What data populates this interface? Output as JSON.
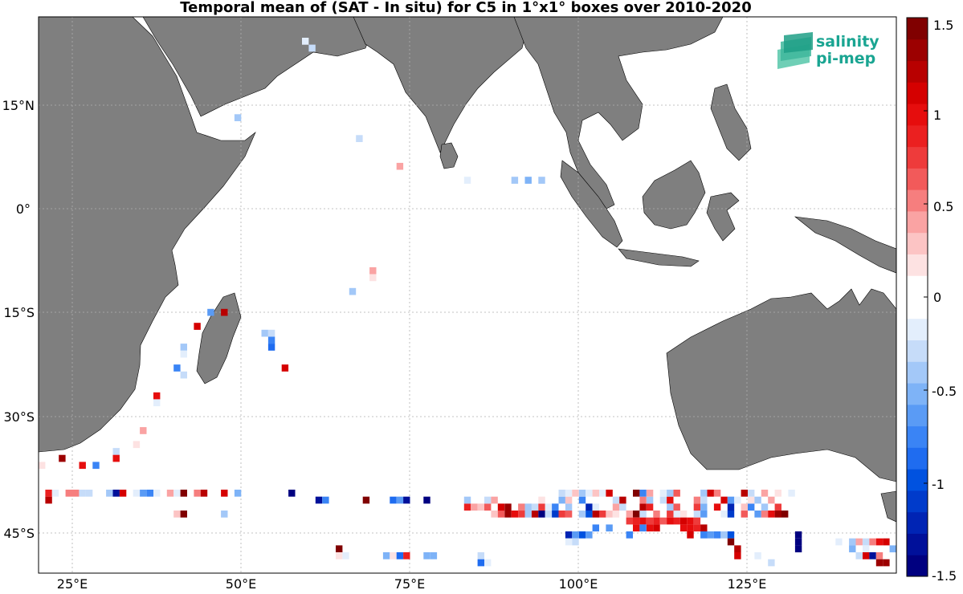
{
  "title": "Temporal mean of (SAT - In situ) for C5 in 1°x1° boxes over 2010-2020",
  "logo": {
    "line1": "salinity",
    "line2": "pi-mep",
    "icon": "wave-layers-icon"
  },
  "map": {
    "lon_range": [
      20,
      147
    ],
    "lat_range": [
      -51,
      29
    ],
    "land_color": "#7f7f7f",
    "ocean_color": "#ffffff",
    "grid": true,
    "lon_ticks": [
      {
        "lon": 25,
        "label": "25°E"
      },
      {
        "lon": 50,
        "label": "50°E"
      },
      {
        "lon": 75,
        "label": "75°E"
      },
      {
        "lon": 100,
        "label": "100°E"
      },
      {
        "lon": 125,
        "label": "125°E"
      }
    ],
    "lat_ticks": [
      {
        "lat": 15,
        "label": "15°N"
      },
      {
        "lat": 0,
        "label": "0°"
      },
      {
        "lat": -15,
        "label": "15°S"
      },
      {
        "lat": -30,
        "label": "30°S"
      },
      {
        "lat": -45,
        "label": "45°S"
      }
    ]
  },
  "colorbar": {
    "min": -1.5,
    "max": 1.5,
    "colors": [
      "#000080",
      "#00109a",
      "#0024b4",
      "#003bcb",
      "#0052e0",
      "#1f6cf0",
      "#3a84f5",
      "#5a9bf5",
      "#7eb3f7",
      "#a3c8f8",
      "#c6dcf9",
      "#e3eefc",
      "#ffffff",
      "#ffffff",
      "#fde2e2",
      "#fcc4c4",
      "#faa3a3",
      "#f67e7e",
      "#f25a5a",
      "#ee3b3b",
      "#eb2020",
      "#e60d0d",
      "#d50000",
      "#b80000",
      "#9c0000",
      "#800000"
    ],
    "ticks": [
      {
        "v": 1.5,
        "label": "1.5"
      },
      {
        "v": 1,
        "label": "1"
      },
      {
        "v": 0.5,
        "label": "0.5"
      },
      {
        "v": 0,
        "label": "0"
      },
      {
        "v": -0.5,
        "label": "-0.5"
      },
      {
        "v": -1,
        "label": "-1"
      },
      {
        "v": -1.5,
        "label": "-1.5"
      }
    ]
  },
  "chart_data": {
    "type": "heatmap",
    "title": "Temporal mean of (SAT - In situ) for C5 in 1°x1° boxes over 2010-2020",
    "cell_size_deg": 1,
    "points": [
      [
        59.5,
        25.5,
        -0.2
      ],
      [
        60.5,
        24.5,
        -0.3
      ],
      [
        49.5,
        14.5,
        -0.4
      ],
      [
        67.5,
        11.5,
        -0.3
      ],
      [
        73.5,
        7.5,
        0.4
      ],
      [
        73.5,
        6.5,
        -0.1
      ],
      [
        83.5,
        5.5,
        -0.2
      ],
      [
        90.5,
        5.5,
        -0.4
      ],
      [
        92.5,
        5.5,
        -0.5
      ],
      [
        94.5,
        5.5,
        -0.4
      ],
      [
        69.5,
        -7.5,
        0.4
      ],
      [
        69.5,
        -8.5,
        0.2
      ],
      [
        66.5,
        -10.5,
        -0.4
      ],
      [
        45.5,
        -13.5,
        -0.6
      ],
      [
        47.5,
        -13.5,
        1.2
      ],
      [
        43.5,
        -15.5,
        1.1
      ],
      [
        53.5,
        -16.5,
        -0.4
      ],
      [
        54.5,
        -16.5,
        -0.3
      ],
      [
        54.5,
        -17.5,
        -0.7
      ],
      [
        54.5,
        -18.5,
        -0.9
      ],
      [
        41.5,
        -18.5,
        -0.4
      ],
      [
        41.5,
        -19.5,
        -0.2
      ],
      [
        40.5,
        -21.5,
        -0.8
      ],
      [
        41.5,
        -22.5,
        -0.3
      ],
      [
        56.5,
        -21.5,
        1.1
      ],
      [
        37.5,
        -25.5,
        1.0
      ],
      [
        37.5,
        -26.5,
        -0.2
      ],
      [
        35.5,
        -30.5,
        0.4
      ],
      [
        36.5,
        -30.5,
        -0.1
      ],
      [
        34.5,
        -32.5,
        0.2
      ],
      [
        31.5,
        -33.5,
        -0.3
      ],
      [
        31.5,
        -34.5,
        1.0
      ],
      [
        23.5,
        -34.5,
        1.3
      ],
      [
        20.5,
        -35.5,
        0.2
      ],
      [
        26.5,
        -35.5,
        1.0
      ],
      [
        28.5,
        -35.5,
        -0.7
      ],
      [
        21.5,
        -39.5,
        0.9
      ],
      [
        22.5,
        -39.5,
        -0.2
      ],
      [
        24.5,
        -39.5,
        0.5
      ],
      [
        25.5,
        -39.5,
        0.5
      ],
      [
        26.5,
        -39.5,
        -0.3
      ],
      [
        27.5,
        -39.5,
        -0.3
      ],
      [
        30.5,
        -39.5,
        -0.4
      ],
      [
        31.5,
        -39.5,
        -1.3
      ],
      [
        32.5,
        -39.5,
        1.1
      ],
      [
        34.5,
        -39.5,
        -0.2
      ],
      [
        35.5,
        -39.5,
        -0.6
      ],
      [
        36.5,
        -39.5,
        -0.8
      ],
      [
        37.5,
        -39.5,
        -0.2
      ],
      [
        39.5,
        -39.5,
        0.4
      ],
      [
        40.5,
        -39.5,
        -0.2
      ],
      [
        41.5,
        -39.5,
        1.4
      ],
      [
        43.5,
        -39.5,
        0.5
      ],
      [
        44.5,
        -39.5,
        1.2
      ],
      [
        46.5,
        -39.5,
        0.1
      ],
      [
        47.5,
        -39.5,
        1.1
      ],
      [
        49.5,
        -39.5,
        -0.5
      ],
      [
        57.5,
        -39.5,
        -1.5
      ],
      [
        21.5,
        -40.5,
        1.2
      ],
      [
        61.5,
        -40.5,
        -1.3
      ],
      [
        62.5,
        -40.5,
        -0.7
      ],
      [
        68.5,
        -40.5,
        1.4
      ],
      [
        72.5,
        -40.5,
        -0.9
      ],
      [
        73.5,
        -40.5,
        -0.6
      ],
      [
        74.5,
        -40.5,
        -1.3
      ],
      [
        77.5,
        -40.5,
        -1.4
      ],
      [
        41.5,
        -41.5,
        -0.1
      ],
      [
        40.5,
        -42.5,
        0.3
      ],
      [
        41.5,
        -42.5,
        1.4
      ],
      [
        47.5,
        -42.5,
        -0.4
      ],
      [
        87.5,
        -42.5,
        0.3
      ],
      [
        88.5,
        -42.5,
        0.6
      ],
      [
        89.5,
        -42.5,
        1.3
      ],
      [
        90.5,
        -42.5,
        1.0
      ],
      [
        91.5,
        -42.5,
        0.8
      ],
      [
        92.5,
        -42.5,
        -0.4
      ],
      [
        93.5,
        -42.5,
        1.2
      ],
      [
        94.5,
        -42.5,
        -1.4
      ],
      [
        95.5,
        -42.5,
        -0.3
      ],
      [
        96.5,
        -42.5,
        -1.1
      ],
      [
        97.5,
        -42.5,
        0.7
      ],
      [
        98.5,
        -42.5,
        0.6
      ],
      [
        100.5,
        -42.5,
        -0.4
      ],
      [
        101.5,
        -42.5,
        -1.0
      ],
      [
        102.5,
        -42.5,
        1.2
      ],
      [
        103.5,
        -42.5,
        0.8
      ],
      [
        104.5,
        -42.5,
        0.3
      ],
      [
        105.5,
        -42.5,
        0.2
      ],
      [
        106.5,
        -42.5,
        -0.1
      ],
      [
        107.5,
        -42.5,
        0.4
      ],
      [
        108.5,
        -42.5,
        1.4
      ],
      [
        109.5,
        -42.5,
        -0.3
      ],
      [
        111.5,
        -42.5,
        0.5
      ],
      [
        113.5,
        -42.5,
        0.8
      ],
      [
        114.5,
        -42.5,
        -0.2
      ],
      [
        115.5,
        -42.5,
        0.2
      ],
      [
        117.5,
        -42.5,
        -0.3
      ],
      [
        118.5,
        -42.5,
        -0.6
      ],
      [
        121.5,
        -42.5,
        -0.2
      ],
      [
        122.5,
        -42.5,
        -1.1
      ],
      [
        124.5,
        -42.5,
        0.6
      ],
      [
        126.5,
        -42.5,
        -0.6
      ],
      [
        127.5,
        -42.5,
        0.5
      ],
      [
        128.5,
        -42.5,
        1.0
      ],
      [
        129.5,
        -42.5,
        1.3
      ],
      [
        130.5,
        -42.5,
        1.4
      ],
      [
        83.5,
        -41.5,
        0.9
      ],
      [
        84.5,
        -41.5,
        0.4
      ],
      [
        85.5,
        -41.5,
        0.3
      ],
      [
        86.5,
        -41.5,
        0.6
      ],
      [
        88.5,
        -41.5,
        1.1
      ],
      [
        89.5,
        -41.5,
        1.3
      ],
      [
        91.5,
        -41.5,
        0.5
      ],
      [
        92.5,
        -41.5,
        -0.4
      ],
      [
        93.5,
        -41.5,
        -0.3
      ],
      [
        94.5,
        -41.5,
        0.7
      ],
      [
        95.5,
        -41.5,
        -0.2
      ],
      [
        96.5,
        -41.5,
        -0.8
      ],
      [
        98.5,
        -41.5,
        -0.4
      ],
      [
        101.5,
        -41.5,
        -1.2
      ],
      [
        102.5,
        -41.5,
        -0.2
      ],
      [
        105.5,
        -41.5,
        0.4
      ],
      [
        106.5,
        -41.5,
        -0.3
      ],
      [
        109.5,
        -41.5,
        1.2
      ],
      [
        110.5,
        -41.5,
        0.9
      ],
      [
        113.5,
        -41.5,
        -0.4
      ],
      [
        114.5,
        -41.5,
        0.6
      ],
      [
        117.5,
        -41.5,
        0.7
      ],
      [
        118.5,
        -41.5,
        -0.5
      ],
      [
        120.5,
        -41.5,
        1.0
      ],
      [
        122.5,
        -41.5,
        -1.2
      ],
      [
        124.5,
        -41.5,
        0.3
      ],
      [
        125.5,
        -41.5,
        -0.7
      ],
      [
        127.5,
        -41.5,
        -0.4
      ],
      [
        129.5,
        -41.5,
        0.8
      ],
      [
        83.5,
        -40.5,
        -0.4
      ],
      [
        86.5,
        -40.5,
        -0.3
      ],
      [
        87.5,
        -40.5,
        0.4
      ],
      [
        94.5,
        -40.5,
        0.2
      ],
      [
        97.5,
        -40.5,
        -0.5
      ],
      [
        98.5,
        -40.5,
        0.3
      ],
      [
        100.5,
        -40.5,
        -0.8
      ],
      [
        103.5,
        -40.5,
        0.1
      ],
      [
        105.5,
        -40.5,
        -0.3
      ],
      [
        106.5,
        -40.5,
        1.2
      ],
      [
        109.5,
        -40.5,
        0.5
      ],
      [
        110.5,
        -40.5,
        -0.4
      ],
      [
        112.5,
        -40.5,
        -0.3
      ],
      [
        113.5,
        -40.5,
        1.0
      ],
      [
        117.5,
        -40.5,
        0.5
      ],
      [
        118.5,
        -40.5,
        -0.3
      ],
      [
        121.5,
        -40.5,
        1.1
      ],
      [
        122.5,
        -40.5,
        -0.6
      ],
      [
        123.5,
        -40.5,
        -0.2
      ],
      [
        125.5,
        -40.5,
        0.2
      ],
      [
        126.5,
        -40.5,
        -0.4
      ],
      [
        128.5,
        -40.5,
        0.4
      ],
      [
        129.5,
        -40.5,
        -0.1
      ],
      [
        97.5,
        -39.5,
        -0.3
      ],
      [
        98.5,
        -39.5,
        -0.2
      ],
      [
        99.5,
        -39.5,
        0.3
      ],
      [
        100.5,
        -39.5,
        -0.4
      ],
      [
        101.5,
        -39.5,
        -0.2
      ],
      [
        102.5,
        -39.5,
        0.3
      ],
      [
        103.5,
        -39.5,
        -0.2
      ],
      [
        104.5,
        -39.5,
        1.1
      ],
      [
        108.5,
        -39.5,
        1.4
      ],
      [
        109.5,
        -39.5,
        -0.7
      ],
      [
        110.5,
        -39.5,
        0.4
      ],
      [
        112.5,
        -39.5,
        -0.2
      ],
      [
        113.5,
        -39.5,
        -0.4
      ],
      [
        114.5,
        -39.5,
        0.6
      ],
      [
        118.5,
        -39.5,
        -0.4
      ],
      [
        119.5,
        -39.5,
        1.1
      ],
      [
        120.5,
        -39.5,
        0.5
      ],
      [
        124.5,
        -39.5,
        1.2
      ],
      [
        125.5,
        -39.5,
        -0.3
      ],
      [
        127.5,
        -39.5,
        0.4
      ],
      [
        129.5,
        -39.5,
        0.2
      ],
      [
        131.5,
        -39.5,
        -0.2
      ],
      [
        107.5,
        -43.5,
        0.7
      ],
      [
        108.5,
        -43.5,
        0.9
      ],
      [
        109.5,
        -43.5,
        1.0
      ],
      [
        110.5,
        -43.5,
        0.8
      ],
      [
        111.5,
        -43.5,
        0.9
      ],
      [
        112.5,
        -43.5,
        0.6
      ],
      [
        113.5,
        -43.5,
        1.0
      ],
      [
        114.5,
        -43.5,
        0.9
      ],
      [
        115.5,
        -43.5,
        1.1
      ],
      [
        116.5,
        -43.5,
        1.0
      ],
      [
        117.5,
        -43.5,
        0.8
      ],
      [
        102.5,
        -44.5,
        -0.8
      ],
      [
        104.5,
        -44.5,
        -0.6
      ],
      [
        108.5,
        -44.5,
        1.0
      ],
      [
        109.5,
        -44.5,
        -0.7
      ],
      [
        110.5,
        -44.5,
        1.0
      ],
      [
        111.5,
        -44.5,
        1.1
      ],
      [
        115.5,
        -44.5,
        1.0
      ],
      [
        116.5,
        -44.5,
        1.0
      ],
      [
        117.5,
        -44.5,
        0.9
      ],
      [
        118.5,
        -44.5,
        1.2
      ],
      [
        98.5,
        -45.5,
        -1.2
      ],
      [
        99.5,
        -45.5,
        -0.6
      ],
      [
        100.5,
        -45.5,
        -1.0
      ],
      [
        101.5,
        -45.5,
        -0.6
      ],
      [
        107.5,
        -45.5,
        -0.8
      ],
      [
        116.5,
        -45.5,
        1.1
      ],
      [
        118.5,
        -45.5,
        -0.8
      ],
      [
        119.5,
        -45.5,
        -0.6
      ],
      [
        120.5,
        -45.5,
        -0.7
      ],
      [
        121.5,
        -45.5,
        -0.4
      ],
      [
        122.5,
        -45.5,
        -1.0
      ],
      [
        132.5,
        -45.5,
        -1.5
      ],
      [
        98.5,
        -46.5,
        -0.2
      ],
      [
        99.5,
        -46.5,
        -0.3
      ],
      [
        122.5,
        -46.5,
        1.4
      ],
      [
        132.5,
        -46.5,
        -1.5
      ],
      [
        138.5,
        -46.5,
        -0.2
      ],
      [
        139.5,
        -46.5,
        -0.1
      ],
      [
        140.5,
        -46.5,
        -0.4
      ],
      [
        141.5,
        -46.5,
        0.4
      ],
      [
        142.5,
        -46.5,
        -0.3
      ],
      [
        143.5,
        -46.5,
        0.5
      ],
      [
        144.5,
        -46.5,
        1.0
      ],
      [
        145.5,
        -46.5,
        1.1
      ],
      [
        132.5,
        -47.5,
        -1.5
      ],
      [
        140.5,
        -47.5,
        -0.5
      ],
      [
        141.5,
        -47.5,
        -0.1
      ],
      [
        142.5,
        -47.5,
        -0.2
      ],
      [
        146.5,
        -47.5,
        -0.5
      ],
      [
        123.5,
        -47.5,
        1.2
      ],
      [
        123.5,
        -48.5,
        1.1
      ],
      [
        64.5,
        -47.5,
        1.4
      ],
      [
        64.5,
        -48.5,
        0.2
      ],
      [
        65.5,
        -48.5,
        -0.2
      ],
      [
        66.5,
        -48.5,
        -0.1
      ],
      [
        71.5,
        -48.5,
        -0.5
      ],
      [
        72.5,
        -48.5,
        0.2
      ],
      [
        73.5,
        -48.5,
        -0.9
      ],
      [
        74.5,
        -48.5,
        0.9
      ],
      [
        77.5,
        -48.5,
        -0.5
      ],
      [
        78.5,
        -48.5,
        -0.5
      ],
      [
        85.5,
        -48.5,
        -0.3
      ],
      [
        126.5,
        -48.5,
        -0.2
      ],
      [
        141.5,
        -48.5,
        -0.3
      ],
      [
        142.5,
        -48.5,
        1.1
      ],
      [
        143.5,
        -48.5,
        -1.3
      ],
      [
        144.5,
        -48.5,
        0.5
      ],
      [
        85.5,
        -49.5,
        -0.9
      ],
      [
        86.5,
        -49.5,
        -0.2
      ],
      [
        128.5,
        -49.5,
        -0.3
      ],
      [
        144.5,
        -49.5,
        1.3
      ],
      [
        145.5,
        -49.5,
        1.3
      ]
    ]
  }
}
